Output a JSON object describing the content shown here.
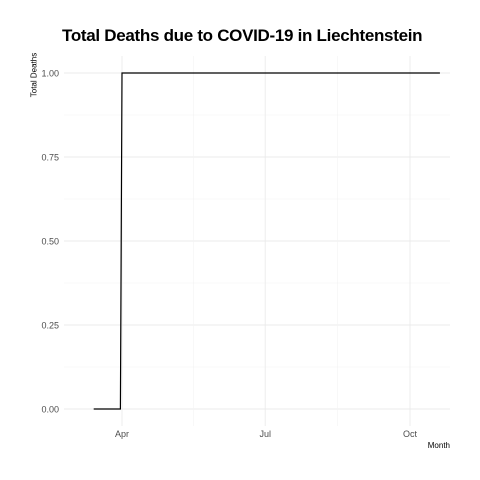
{
  "chart_data": {
    "type": "line",
    "title": "Total Deaths due to COVID-19 in Liechtenstein",
    "xlabel": "Month",
    "ylabel": "Total Deaths",
    "x_ticks": [
      "Apr",
      "Jul",
      "Oct"
    ],
    "y_ticks": [
      "0.00",
      "0.25",
      "0.50",
      "0.75",
      "1.00"
    ],
    "ylim": [
      0,
      1
    ],
    "grid": true,
    "series": [
      {
        "color": "#000000",
        "points": [
          {
            "x": "2020-03-14",
            "y": 0
          },
          {
            "x": "2020-03-31",
            "y": 0
          },
          {
            "x": "2020-04-01",
            "y": 1
          },
          {
            "x": "2020-10-20",
            "y": 1
          }
        ]
      }
    ]
  }
}
